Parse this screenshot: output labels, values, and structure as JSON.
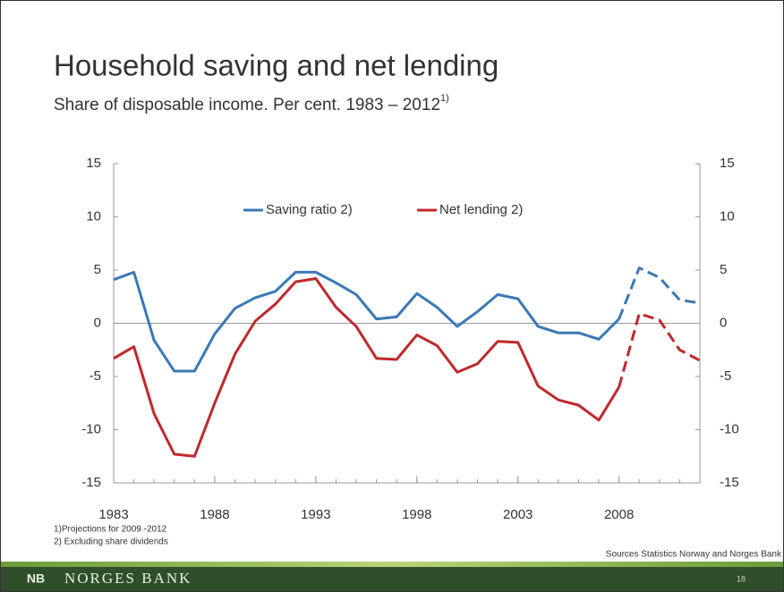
{
  "chart_data": {
    "type": "line",
    "title": "Household saving and net lending",
    "subtitle": "Share of disposable income. Per cent. 1983 – 2012",
    "subtitle_note": "1)",
    "x": [
      1983,
      1984,
      1985,
      1986,
      1987,
      1988,
      1989,
      1990,
      1991,
      1992,
      1993,
      1994,
      1995,
      1996,
      1997,
      1998,
      1999,
      2000,
      2001,
      2002,
      2003,
      2004,
      2005,
      2006,
      2007,
      2008,
      2009,
      2010,
      2011,
      2012
    ],
    "series": [
      {
        "name": "Saving ratio 2)",
        "color": "#3a78b5",
        "values": [
          4.1,
          4.8,
          -1.6,
          -4.5,
          -4.5,
          -1.0,
          1.4,
          2.4,
          3.0,
          4.8,
          4.8,
          3.8,
          2.7,
          0.4,
          0.6,
          2.8,
          1.5,
          -0.3,
          1.1,
          2.7,
          2.3,
          -0.3,
          -0.9,
          -0.9,
          -1.5,
          0.4,
          5.2,
          4.3,
          2.2,
          1.9
        ]
      },
      {
        "name": "Net lending 2)",
        "color": "#c0282d",
        "values": [
          -3.3,
          -2.2,
          -8.5,
          -12.3,
          -12.5,
          -7.5,
          -2.9,
          0.2,
          1.8,
          3.9,
          4.2,
          1.5,
          -0.3,
          -3.3,
          -3.4,
          -1.1,
          -2.1,
          -4.6,
          -3.8,
          -1.7,
          -1.8,
          -5.9,
          -7.2,
          -7.7,
          -9.1,
          -6.0,
          0.9,
          0.3,
          -2.5,
          -3.5
        ]
      }
    ],
    "dashed_from_x": 2008,
    "xlim": [
      1983,
      2012
    ],
    "xticks": [
      1983,
      1988,
      1993,
      1998,
      2003,
      2008
    ],
    "ylim": [
      -15,
      15
    ],
    "yticks": [
      -15,
      -10,
      -5,
      0,
      5,
      10,
      15
    ],
    "y2lim": [
      -15,
      15
    ],
    "y2ticks": [
      -15,
      -10,
      -5,
      0,
      5,
      10,
      15
    ],
    "legend": "top",
    "footnotes": [
      "1)Projections for 2009 -2012",
      "2) Excluding share dividends"
    ],
    "source": "Sources Statistics Norway and Norges Bank",
    "footer": "NORGES BANK",
    "logo": "NB",
    "page_number": "18"
  }
}
